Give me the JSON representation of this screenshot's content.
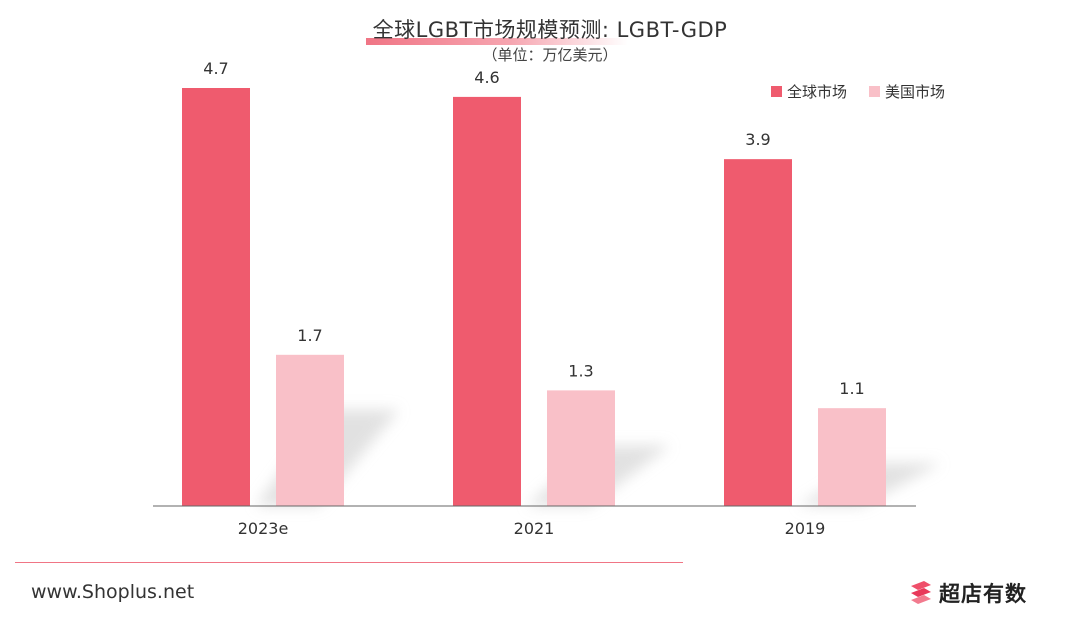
{
  "chart_data": {
    "type": "bar",
    "title": "全球LGBT市场规模预测: LGBT-GDP",
    "subtitle": "（单位：万亿美元）",
    "categories": [
      "2023e",
      "2021",
      "2019"
    ],
    "series": [
      {
        "name": "全球市场",
        "color": "#ef5b6e",
        "values": [
          4.7,
          4.6,
          3.9
        ],
        "labels": [
          "4.7",
          "4.6",
          "3.9"
        ]
      },
      {
        "name": "美国市场",
        "color": "#f9c0c8",
        "values": [
          1.7,
          1.3,
          1.1
        ],
        "labels": [
          "1.7",
          "1.3",
          "1.1"
        ]
      }
    ],
    "ylim": [
      0,
      4.7
    ],
    "grid": false,
    "legend": "top-right"
  },
  "footer": {
    "url": "www.Shoplus.net",
    "logo_text": "超店有数",
    "logo_icon": "shoplus-logo-icon"
  },
  "colors": {
    "accent": "#ef5b6e",
    "accent_light": "#f9c0c8",
    "axis": "#666666"
  }
}
